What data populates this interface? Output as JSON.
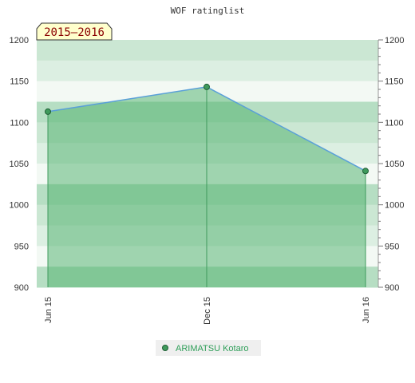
{
  "chart_data": {
    "type": "area",
    "title": "WOF ratinglist",
    "badge": "2015–2016",
    "x": [
      "Jun 15",
      "Dec 15",
      "Jun 16"
    ],
    "series": [
      {
        "name": "ARIMATSU Kotaro",
        "values": [
          1113,
          1143,
          1041
        ]
      }
    ],
    "ylim": [
      900,
      1200
    ],
    "y_ticks": [
      900,
      950,
      1000,
      1050,
      1100,
      1150,
      1200
    ],
    "y_ticks_left": [
      "900",
      "950",
      "1000",
      "1050",
      "1100",
      "1150",
      "1200"
    ],
    "y_ticks_right": [
      "900",
      "950",
      "1000",
      "1050",
      "1100",
      "1150",
      "1200"
    ],
    "legend_placement": "bottom-center",
    "colors": {
      "line": "#5aa0d8",
      "area": "#4caf6a",
      "point": "#3f9a5c",
      "legend_text": "#2e9e58",
      "badge_bg": "#ffffcc",
      "badge_text": "#8b0000"
    }
  }
}
